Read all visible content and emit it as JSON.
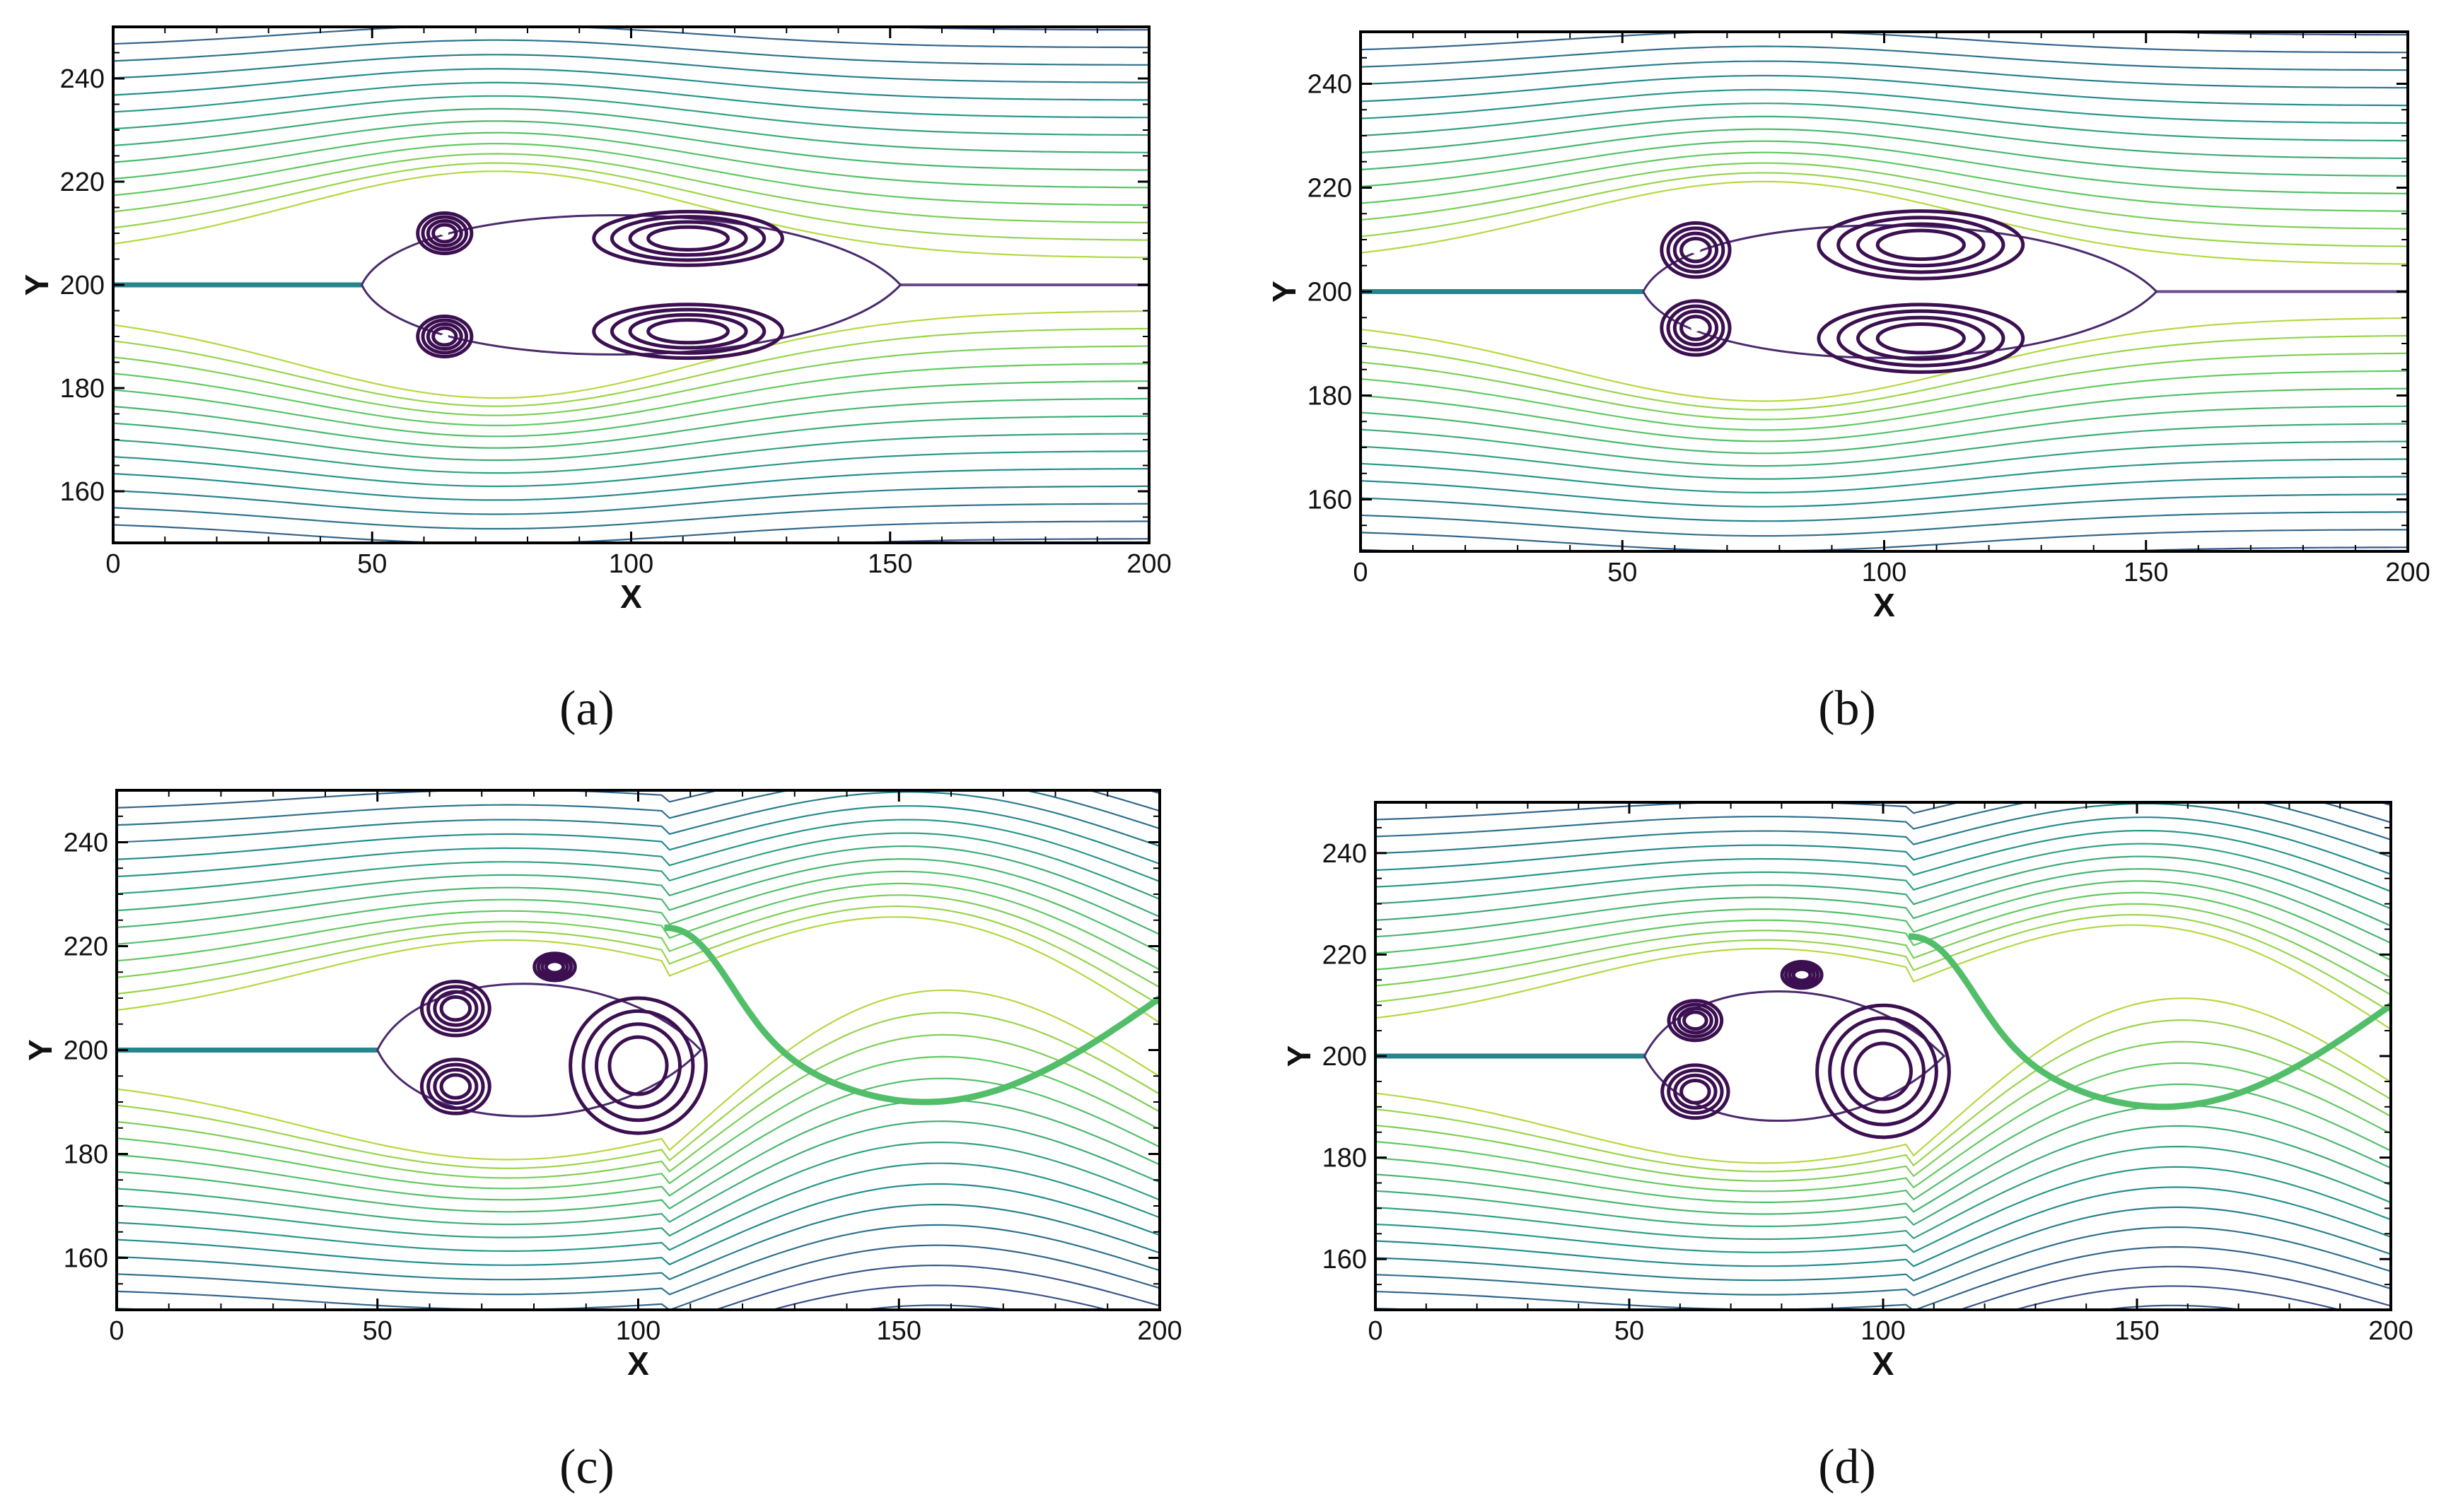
{
  "chart_data": [
    {
      "type": "streamline",
      "panel": "a",
      "caption": "(a)",
      "xlabel": "X",
      "ylabel": "Y",
      "xlim": [
        0,
        200
      ],
      "ylim": [
        150,
        250
      ],
      "xticks": [
        0,
        50,
        100,
        150,
        200
      ],
      "yticks": [
        160,
        180,
        200,
        220,
        240
      ],
      "wake": "symmetric",
      "vortices": [
        {
          "x": 64,
          "y": 210,
          "rx": 4,
          "ry": 3
        },
        {
          "x": 64,
          "y": 190,
          "rx": 4,
          "ry": 3
        },
        {
          "x": 111,
          "y": 209,
          "rx": 14,
          "ry": 4
        },
        {
          "x": 111,
          "y": 191,
          "rx": 14,
          "ry": 4
        }
      ],
      "wake_region": {
        "x_start": 48,
        "x_end": 152,
        "y_half": 18
      }
    },
    {
      "type": "streamline",
      "panel": "b",
      "caption": "(b)",
      "xlabel": "X",
      "ylabel": "Y",
      "xlim": [
        0,
        200
      ],
      "ylim": [
        150,
        250
      ],
      "xticks": [
        0,
        50,
        100,
        150,
        200
      ],
      "yticks": [
        160,
        180,
        200,
        220,
        240
      ],
      "wake": "symmetric",
      "vortices": [
        {
          "x": 64,
          "y": 208,
          "rx": 5,
          "ry": 4
        },
        {
          "x": 64,
          "y": 193,
          "rx": 5,
          "ry": 4
        },
        {
          "x": 107,
          "y": 209,
          "rx": 15,
          "ry": 5
        },
        {
          "x": 107,
          "y": 191,
          "rx": 15,
          "ry": 5
        }
      ],
      "wake_region": {
        "x_start": 54,
        "x_end": 152,
        "y_half": 17
      }
    },
    {
      "type": "streamline",
      "panel": "c",
      "caption": "(c)",
      "xlabel": "X",
      "ylabel": "Y",
      "xlim": [
        0,
        200
      ],
      "ylim": [
        150,
        250
      ],
      "xticks": [
        0,
        50,
        100,
        150,
        200
      ],
      "yticks": [
        160,
        180,
        200,
        220,
        240
      ],
      "wake": "shedding",
      "vortices": [
        {
          "x": 65,
          "y": 208,
          "rx": 5,
          "ry": 4
        },
        {
          "x": 65,
          "y": 193,
          "rx": 5,
          "ry": 4
        },
        {
          "x": 84,
          "y": 216,
          "rx": 3,
          "ry": 2
        },
        {
          "x": 100,
          "y": 197,
          "rx": 10,
          "ry": 10
        }
      ],
      "wake_region": {
        "x_start": 50,
        "x_end": 112,
        "y_half": 17
      }
    },
    {
      "type": "streamline",
      "panel": "d",
      "caption": "(d)",
      "xlabel": "X",
      "ylabel": "Y",
      "xlim": [
        0,
        200
      ],
      "ylim": [
        150,
        250
      ],
      "xticks": [
        0,
        50,
        100,
        150,
        200
      ],
      "yticks": [
        160,
        180,
        200,
        220,
        240
      ],
      "wake": "shedding",
      "vortices": [
        {
          "x": 63,
          "y": 207,
          "rx": 4,
          "ry": 3
        },
        {
          "x": 63,
          "y": 193,
          "rx": 5,
          "ry": 4
        },
        {
          "x": 84,
          "y": 216,
          "rx": 3,
          "ry": 2
        },
        {
          "x": 100,
          "y": 197,
          "rx": 10,
          "ry": 10
        }
      ],
      "wake_region": {
        "x_start": 53,
        "x_end": 112,
        "y_half": 17
      }
    }
  ],
  "colors": {
    "colormap": [
      "#440154",
      "#3b528b",
      "#21918c",
      "#5ec962",
      "#fde725"
    ],
    "vortex": "#3b0f50",
    "frame": "#000000"
  }
}
